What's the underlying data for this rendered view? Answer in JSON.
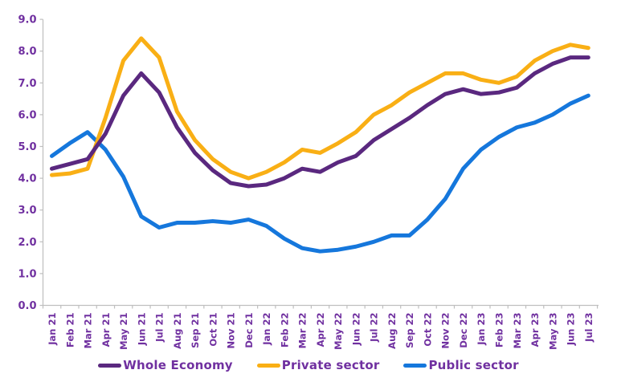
{
  "chart_data": {
    "type": "line",
    "title": "",
    "xlabel": "",
    "ylabel": "",
    "ylim": [
      0,
      9
    ],
    "ytick_step": 1,
    "ytick_decimals": 1,
    "grid": false,
    "legend_position": "bottom",
    "x": [
      "Jan 21",
      "Feb 21",
      "Mar 21",
      "Apr 21",
      "May 21",
      "Jun 21",
      "Jul 21",
      "Aug 21",
      "Sep 21",
      "Oct 21",
      "Nov 21",
      "Dec 21",
      "Jan 22",
      "Feb 22",
      "Mar 22",
      "Apr 22",
      "May 22",
      "Jun 22",
      "Jul 22",
      "Aug 22",
      "Sep 22",
      "Oct 22",
      "Nov 22",
      "Dec 22",
      "Jan 23",
      "Feb 23",
      "Mar 23",
      "Apr 23",
      "May 23",
      "Jun 23",
      "Jul 23"
    ],
    "series": [
      {
        "name": "Whole Economy",
        "color": "#5A287F",
        "values": [
          4.3,
          4.45,
          4.6,
          5.4,
          6.6,
          7.3,
          6.7,
          5.6,
          4.8,
          4.25,
          3.85,
          3.75,
          3.8,
          4.0,
          4.3,
          4.2,
          4.5,
          4.7,
          5.2,
          5.55,
          5.9,
          6.3,
          6.65,
          6.8,
          6.65,
          6.7,
          6.85,
          7.3,
          7.6,
          7.8,
          7.8
        ]
      },
      {
        "name": "Private sector",
        "color": "#F9AF15",
        "values": [
          4.1,
          4.15,
          4.3,
          5.9,
          7.7,
          8.4,
          7.8,
          6.1,
          5.2,
          4.6,
          4.2,
          4.0,
          4.2,
          4.5,
          4.9,
          4.8,
          5.1,
          5.45,
          6.0,
          6.3,
          6.7,
          7.0,
          7.3,
          7.3,
          7.1,
          7.0,
          7.2,
          7.7,
          8.0,
          8.2,
          8.1
        ]
      },
      {
        "name": "Public sector",
        "color": "#1577DC",
        "values": [
          4.7,
          5.1,
          5.45,
          4.9,
          4.05,
          2.8,
          2.45,
          2.6,
          2.6,
          2.65,
          2.6,
          2.7,
          2.5,
          2.1,
          1.8,
          1.7,
          1.75,
          1.85,
          2.0,
          2.2,
          2.2,
          2.7,
          3.35,
          4.3,
          4.9,
          5.3,
          5.6,
          5.75,
          6.0,
          6.35,
          6.6
        ]
      }
    ]
  },
  "style": {
    "tick_label_color": "#7030A0",
    "axis_line_color": "#BFBFBF",
    "line_width": 5
  }
}
